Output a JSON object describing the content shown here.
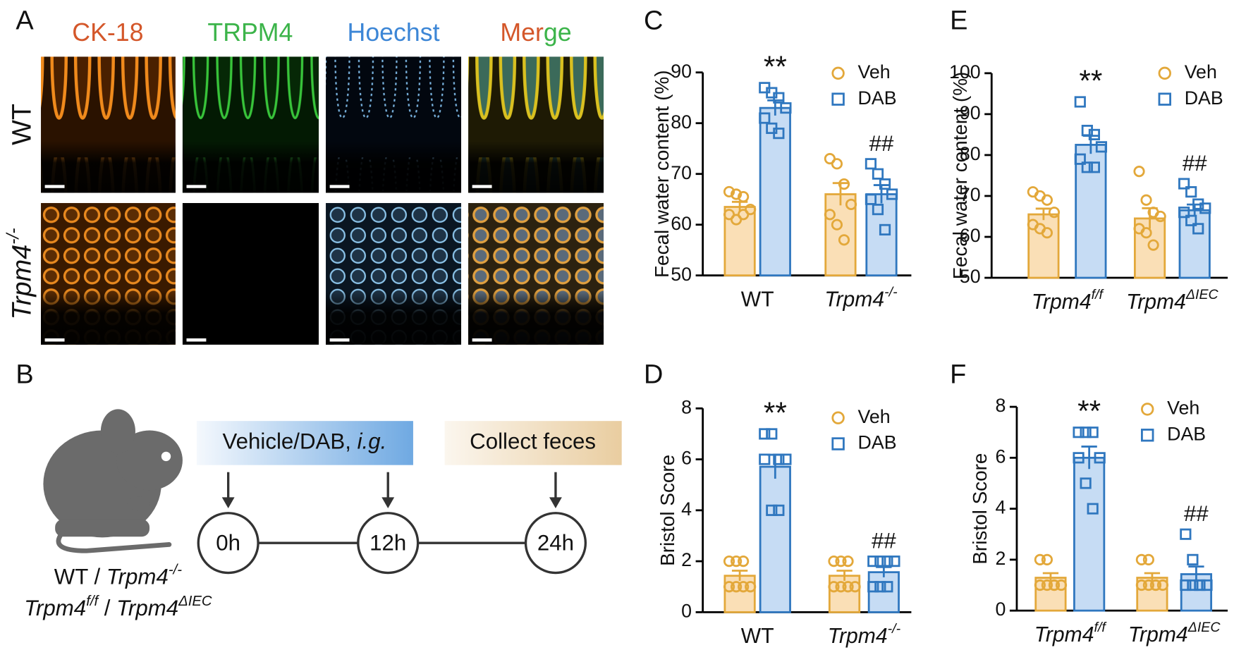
{
  "panel_labels": [
    "A",
    "B",
    "C",
    "D",
    "E",
    "F"
  ],
  "panel_a": {
    "columns": [
      [
        {
          "text": "CK-18",
          "color": "#d4572a"
        }
      ],
      [
        {
          "text": "TRPM4",
          "color": "#3cb44a"
        }
      ],
      [
        {
          "text": "Hoechst",
          "color": "#3c86d6"
        }
      ],
      [
        {
          "text": "Mer",
          "color": "#d4572a"
        },
        {
          "text": "ge",
          "color": "#3cb44a"
        }
      ]
    ],
    "rows": [
      [
        {
          "text": "WT"
        }
      ],
      [
        {
          "text": "Trpm4",
          "italic": true
        },
        {
          "text": "-/-",
          "italic": true,
          "sup": true
        }
      ]
    ]
  },
  "panel_b": {
    "treatment": [
      {
        "text": "Vehicle/DAB, "
      },
      {
        "text": "i.g.",
        "italic": true
      }
    ],
    "collect": "Collect feces",
    "timepoints": [
      "0h",
      "12h",
      "24h"
    ],
    "genotypes": [
      [
        {
          "text": "WT / "
        },
        {
          "text": "Trpm4",
          "italic": true
        },
        {
          "text": "-/-",
          "italic": true,
          "sup": true
        }
      ],
      [
        {
          "text": "Trpm4",
          "italic": true
        },
        {
          "text": "f/f",
          "italic": true,
          "sup": true
        },
        {
          "text": " / "
        },
        {
          "text": "Trpm4",
          "italic": true
        },
        {
          "text": "ΔIEC",
          "italic": true,
          "sup": true
        }
      ]
    ]
  },
  "chart_data": [
    {
      "type": "bar",
      "ylabel": "Fecal water content (%)",
      "ylim": [
        50,
        90
      ],
      "yticks": [
        50,
        60,
        70,
        80,
        90
      ],
      "categories": [
        [
          {
            "text": "WT"
          }
        ],
        [
          {
            "text": "Trpm4",
            "italic": true
          },
          {
            "text": "-/-",
            "italic": true,
            "sup": true
          }
        ]
      ],
      "series": [
        {
          "name": "Veh",
          "color": "#e3a83a",
          "fill": "#fadfb6",
          "marker": "circle",
          "values": [
            63.5,
            66
          ],
          "errors": [
            1,
            2.2
          ],
          "points": [
            [
              66.5,
              66,
              65.5,
              63,
              62,
              61,
              62
            ],
            [
              73,
              72,
              68,
              64,
              62,
              60,
              57
            ]
          ]
        },
        {
          "name": "DAB",
          "color": "#2f77bf",
          "fill": "#c6dcf4",
          "marker": "square",
          "values": [
            83,
            66
          ],
          "errors": [
            1.5,
            1.8
          ],
          "points": [
            [
              87,
              86,
              85,
              83,
              81,
              79,
              78
            ],
            [
              72,
              70,
              68,
              66,
              65,
              63,
              59
            ]
          ]
        }
      ],
      "annotations": [
        "**",
        "##"
      ]
    },
    {
      "type": "bar",
      "ylabel": "Bristol Score",
      "ylim": [
        0,
        8
      ],
      "yticks": [
        0,
        2,
        4,
        6,
        8
      ],
      "categories": [
        [
          {
            "text": "WT"
          }
        ],
        [
          {
            "text": "Trpm4",
            "italic": true
          },
          {
            "text": "-/-",
            "italic": true,
            "sup": true
          }
        ]
      ],
      "series": [
        {
          "name": "Veh",
          "color": "#e3a83a",
          "fill": "#fadfb6",
          "marker": "circle",
          "values": [
            1.43,
            1.43
          ],
          "errors": [
            0.2,
            0.2
          ],
          "points": [
            [
              2,
              2,
              2,
              1,
              1,
              1,
              1
            ],
            [
              2,
              2,
              2,
              1,
              1,
              1,
              1
            ]
          ]
        },
        {
          "name": "DAB",
          "color": "#2f77bf",
          "fill": "#c6dcf4",
          "marker": "square",
          "values": [
            5.71,
            1.57
          ],
          "errors": [
            0.47,
            0.2
          ],
          "points": [
            [
              7,
              7,
              6,
              6,
              6,
              4,
              4
            ],
            [
              2,
              2,
              2,
              2,
              1,
              1,
              1
            ]
          ]
        }
      ],
      "annotations": [
        "**",
        "##"
      ]
    },
    {
      "type": "bar",
      "ylabel": "Fecal water content (%)",
      "ylim": [
        50,
        100
      ],
      "yticks": [
        50,
        60,
        70,
        80,
        90,
        100
      ],
      "categories": [
        [
          {
            "text": "Trpm4",
            "italic": true
          },
          {
            "text": "f/f",
            "italic": true,
            "sup": true
          }
        ],
        [
          {
            "text": "Trpm4",
            "italic": true
          },
          {
            "text": "ΔIEC",
            "italic": true,
            "sup": true
          }
        ]
      ],
      "series": [
        {
          "name": "Veh",
          "color": "#e3a83a",
          "fill": "#fadfb6",
          "marker": "circle",
          "values": [
            65.5,
            64.5
          ],
          "errors": [
            1.4,
            2.5
          ],
          "points": [
            [
              71,
              70,
              69,
              66,
              63,
              62,
              61
            ],
            [
              76,
              69,
              66,
              65,
              62,
              61,
              58
            ]
          ]
        },
        {
          "name": "DAB",
          "color": "#2f77bf",
          "fill": "#c6dcf4",
          "marker": "square",
          "values": [
            82.5,
            66.5
          ],
          "errors": [
            2.2,
            1.4
          ],
          "points": [
            [
              93,
              86,
              85,
              82,
              79,
              77,
              77
            ],
            [
              73,
              71,
              68,
              67,
              66,
              64,
              62
            ]
          ]
        }
      ],
      "annotations": [
        "**",
        "##"
      ]
    },
    {
      "type": "bar",
      "ylabel": "Bristol Score",
      "ylim": [
        0,
        8
      ],
      "yticks": [
        0,
        2,
        4,
        6,
        8
      ],
      "categories": [
        [
          {
            "text": "Trpm4",
            "italic": true
          },
          {
            "text": "f/f",
            "italic": true,
            "sup": true
          }
        ],
        [
          {
            "text": "Trpm4",
            "italic": true
          },
          {
            "text": "ΔIEC",
            "italic": true,
            "sup": true
          }
        ]
      ],
      "series": [
        {
          "name": "Veh",
          "color": "#e3a83a",
          "fill": "#fadfb6",
          "marker": "circle",
          "values": [
            1.29,
            1.29
          ],
          "errors": [
            0.18,
            0.18
          ],
          "points": [
            [
              2,
              2,
              1,
              1,
              1,
              1,
              1
            ],
            [
              2,
              2,
              1,
              1,
              1,
              1,
              1
            ]
          ]
        },
        {
          "name": "DAB",
          "color": "#2f77bf",
          "fill": "#c6dcf4",
          "marker": "square",
          "values": [
            6,
            1.43
          ],
          "errors": [
            0.44,
            0.3
          ],
          "points": [
            [
              7,
              7,
              7,
              6,
              6,
              5,
              4
            ],
            [
              3,
              2,
              1,
              1,
              1,
              1,
              1
            ]
          ]
        }
      ],
      "annotations": [
        "**",
        "##"
      ]
    }
  ]
}
